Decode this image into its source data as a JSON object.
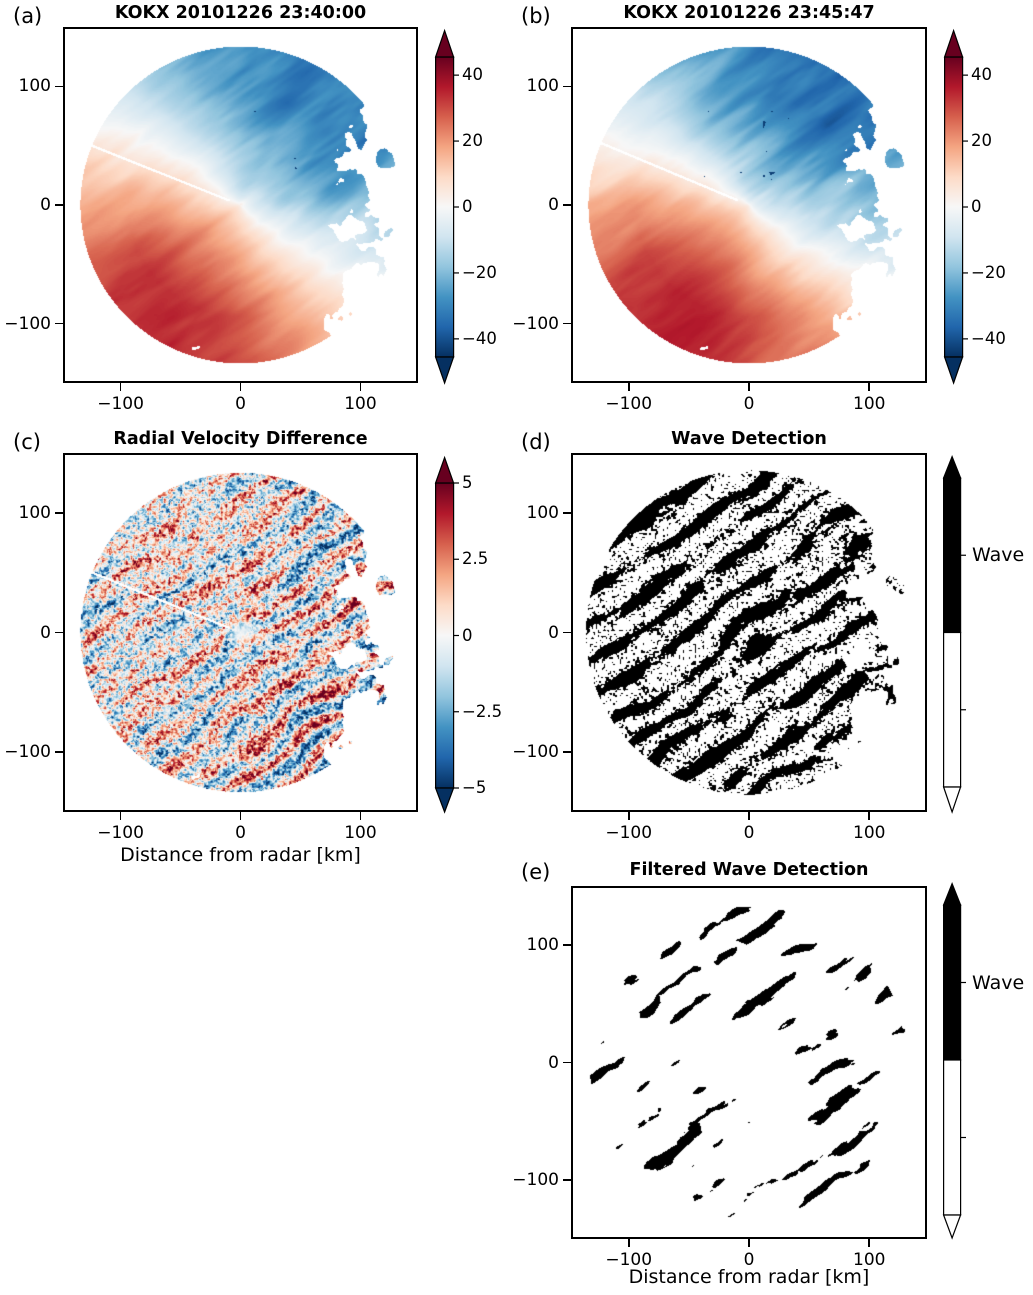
{
  "figure": {
    "background": "#ffffff"
  },
  "colors": {
    "rdbu_r": [
      "#053061",
      "#2166ac",
      "#4393c3",
      "#92c5de",
      "#d1e5f0",
      "#f7f7f7",
      "#fddbc7",
      "#f4a582",
      "#d6604d",
      "#b2182b",
      "#67001f"
    ],
    "wave": "#000000",
    "no_wave": "#ffffff",
    "frame": "#000000",
    "text": "#000000"
  },
  "chart_data": [
    {
      "id": "a",
      "panel_label": "(a)",
      "type": "heatmap",
      "title": "KOKX 20101226 23:40:00",
      "x_axis_label": "",
      "y_axis_label": "",
      "x_range": [
        -148,
        148
      ],
      "y_range": [
        -150,
        150
      ],
      "grid": false,
      "x_ticks": [
        {
          "v": -100,
          "label": "−100"
        },
        {
          "v": 0,
          "label": "0"
        },
        {
          "v": 100,
          "label": "100"
        }
      ],
      "y_ticks": [
        {
          "v": 100,
          "label": "100"
        },
        {
          "v": 0,
          "label": "0"
        },
        {
          "v": -100,
          "label": "−100"
        }
      ],
      "colorbar": {
        "kind": "gradient",
        "range": [
          -45.5,
          45.5
        ],
        "extend": "both",
        "ticks": [
          {
            "v": 40,
            "label": "40"
          },
          {
            "v": 20,
            "label": "20"
          },
          {
            "v": 0,
            "label": "0"
          },
          {
            "v": -20,
            "label": "−20"
          },
          {
            "v": -40,
            "label": "−40"
          }
        ]
      },
      "render": {
        "kind": "velocity",
        "seed": 7,
        "mask_seed": 21,
        "vmax": 34,
        "red_dir_deg": 240,
        "twist_deg": 14,
        "streak_amp": 7,
        "ray_deg": 158,
        "band_deg": 35,
        "radius_km": 135
      }
    },
    {
      "id": "b",
      "panel_label": "(b)",
      "type": "heatmap",
      "title": "KOKX 20101226 23:45:47",
      "x_axis_label": "",
      "y_axis_label": "",
      "x_range": [
        -148,
        148
      ],
      "y_range": [
        -150,
        150
      ],
      "grid": false,
      "x_ticks": [
        {
          "v": -100,
          "label": "−100"
        },
        {
          "v": 0,
          "label": "0"
        },
        {
          "v": 100,
          "label": "100"
        }
      ],
      "y_ticks": [
        {
          "v": 100,
          "label": "100"
        },
        {
          "v": 0,
          "label": "0"
        },
        {
          "v": -100,
          "label": "−100"
        }
      ],
      "colorbar": {
        "kind": "gradient",
        "range": [
          -45.5,
          45.5
        ],
        "extend": "both",
        "ticks": [
          {
            "v": 40,
            "label": "40"
          },
          {
            "v": 20,
            "label": "20"
          },
          {
            "v": 0,
            "label": "0"
          },
          {
            "v": -20,
            "label": "−20"
          },
          {
            "v": -40,
            "label": "−40"
          }
        ]
      },
      "render": {
        "kind": "velocity",
        "seed": 11,
        "mask_seed": 21,
        "vmax": 35,
        "red_dir_deg": 243,
        "twist_deg": 14,
        "streak_amp": 7,
        "ray_deg": 157,
        "band_deg": 35,
        "radius_km": 135
      }
    },
    {
      "id": "c",
      "panel_label": "(c)",
      "type": "heatmap",
      "title": "Radial Velocity Difference",
      "x_axis_label": "Distance from radar [km]",
      "y_axis_label": "",
      "x_range": [
        -148,
        148
      ],
      "y_range": [
        -150,
        150
      ],
      "grid": false,
      "x_ticks": [
        {
          "v": -100,
          "label": "−100"
        },
        {
          "v": 0,
          "label": "0"
        },
        {
          "v": 100,
          "label": "100"
        }
      ],
      "y_ticks": [
        {
          "v": 100,
          "label": "100"
        },
        {
          "v": 0,
          "label": "0"
        },
        {
          "v": -100,
          "label": "−100"
        }
      ],
      "colorbar": {
        "kind": "gradient",
        "range": [
          -5,
          5
        ],
        "extend": "both",
        "ticks": [
          {
            "v": 5,
            "label": "5"
          },
          {
            "v": 2.5,
            "label": "2.5"
          },
          {
            "v": 0,
            "label": "0"
          },
          {
            "v": -2.5,
            "label": "−2.5"
          },
          {
            "v": -5,
            "label": "−5"
          }
        ]
      },
      "render": {
        "kind": "difference",
        "seed": 31,
        "mask_seed": 21,
        "ray_deg": 158,
        "band_deg": 35,
        "wavelength_km": 22,
        "radius_km": 135
      }
    },
    {
      "id": "d",
      "panel_label": "(d)",
      "type": "heatmap",
      "title": "Wave Detection",
      "x_axis_label": "",
      "y_axis_label": "",
      "x_range": [
        -148,
        148
      ],
      "y_range": [
        -150,
        150
      ],
      "grid": false,
      "x_ticks": [
        {
          "v": -100,
          "label": "−100"
        },
        {
          "v": 0,
          "label": "0"
        },
        {
          "v": 100,
          "label": "100"
        }
      ],
      "y_ticks": [
        {
          "v": 100,
          "label": "100"
        },
        {
          "v": 0,
          "label": "0"
        },
        {
          "v": -100,
          "label": "−100"
        }
      ],
      "colorbar": {
        "kind": "binary",
        "extend": "both",
        "categories": [
          {
            "label": "Wave",
            "color": "#000000"
          },
          {
            "label": "",
            "color": "#ffffff"
          }
        ]
      },
      "render": {
        "kind": "mask",
        "seed": 41,
        "mask_seed": 21,
        "band_deg": 35,
        "wavelength_km": 25,
        "radius_km": 137
      }
    },
    {
      "id": "e",
      "panel_label": "(e)",
      "type": "heatmap",
      "title": "Filtered Wave Detection",
      "x_axis_label": "Distance from radar [km]",
      "y_axis_label": "",
      "x_range": [
        -148,
        148
      ],
      "y_range": [
        -150,
        150
      ],
      "grid": false,
      "x_ticks": [
        {
          "v": -100,
          "label": "−100"
        },
        {
          "v": 0,
          "label": "0"
        },
        {
          "v": 100,
          "label": "100"
        }
      ],
      "y_ticks": [
        {
          "v": 100,
          "label": "100"
        },
        {
          "v": 0,
          "label": "0"
        },
        {
          "v": -100,
          "label": "−100"
        }
      ],
      "colorbar": {
        "kind": "binary",
        "extend": "both",
        "categories": [
          {
            "label": "Wave",
            "color": "#000000"
          },
          {
            "label": "",
            "color": "#ffffff"
          }
        ]
      },
      "render": {
        "kind": "mask_filtered",
        "seed": 55,
        "mask_seed": 23,
        "band_deg": 35,
        "wavelength_km": 26,
        "radius_km": 134
      }
    }
  ]
}
